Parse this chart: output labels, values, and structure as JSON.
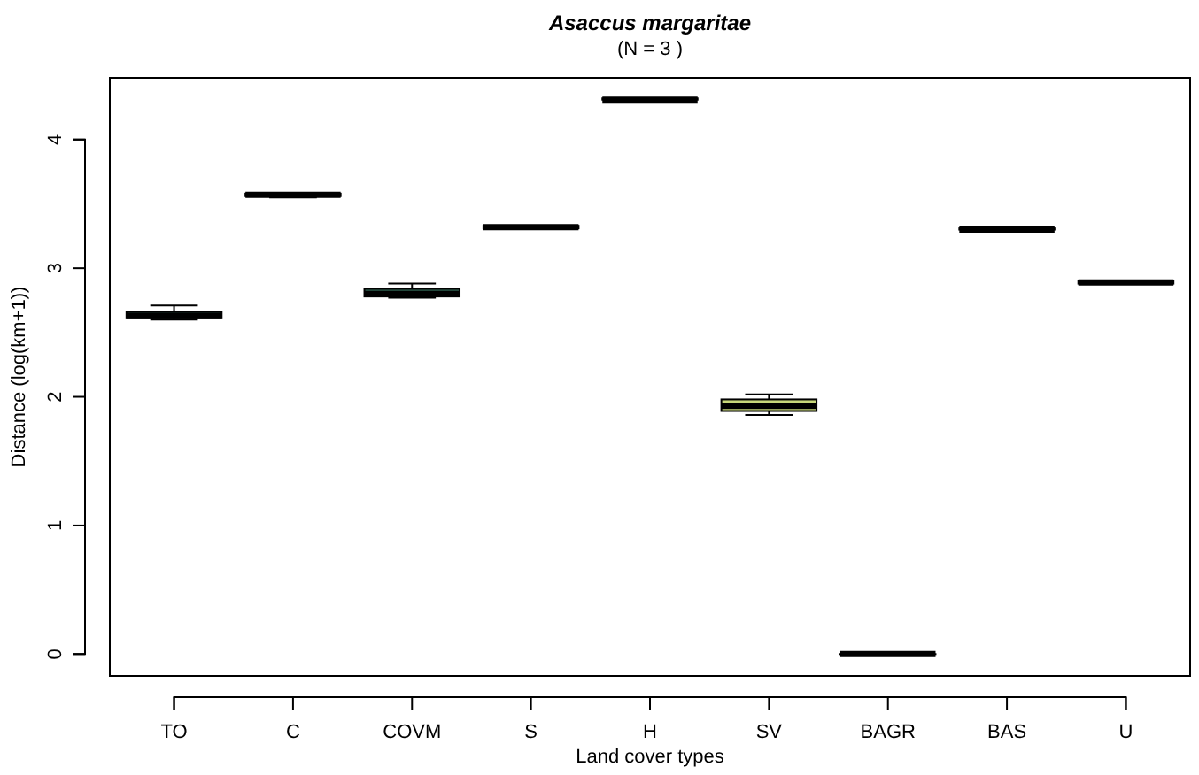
{
  "chart_data": {
    "type": "box",
    "title": "Asaccus margaritae",
    "subtitle": "(N = 3 )",
    "xlabel": "Land cover types",
    "ylabel": "Distance (log(km+1))",
    "categories": [
      "TO",
      "C",
      "COVM",
      "S",
      "H",
      "SV",
      "BAGR",
      "BAS",
      "U"
    ],
    "colors": [
      "#2e5e4e",
      "#000000",
      "#2e5e4e",
      "#000000",
      "#000000",
      "#c8d87a",
      "#000000",
      "#000000",
      "#000000"
    ],
    "boxes": [
      {
        "low": 2.6,
        "q1": 2.61,
        "median": 2.63,
        "q3": 2.66,
        "high": 2.71
      },
      {
        "low": 3.55,
        "q1": 3.56,
        "median": 3.57,
        "q3": 3.58,
        "high": 3.58
      },
      {
        "low": 2.77,
        "q1": 2.78,
        "median": 2.8,
        "q3": 2.84,
        "high": 2.88
      },
      {
        "low": 3.31,
        "q1": 3.31,
        "median": 3.32,
        "q3": 3.33,
        "high": 3.33
      },
      {
        "low": 4.3,
        "q1": 4.31,
        "median": 4.31,
        "q3": 4.32,
        "high": 4.32
      },
      {
        "low": 1.86,
        "q1": 1.89,
        "median": 1.93,
        "q3": 1.98,
        "high": 2.02
      },
      {
        "low": 0,
        "q1": 0,
        "median": 0,
        "q3": 0,
        "high": 0
      },
      {
        "low": 3.29,
        "q1": 3.3,
        "median": 3.3,
        "q3": 3.31,
        "high": 3.31
      },
      {
        "low": 2.88,
        "q1": 2.88,
        "median": 2.89,
        "q3": 2.9,
        "high": 2.9
      }
    ],
    "ylim": [
      -0.17,
      4.48
    ],
    "yticks": [
      0,
      1,
      2,
      3,
      4
    ],
    "grid": false
  }
}
